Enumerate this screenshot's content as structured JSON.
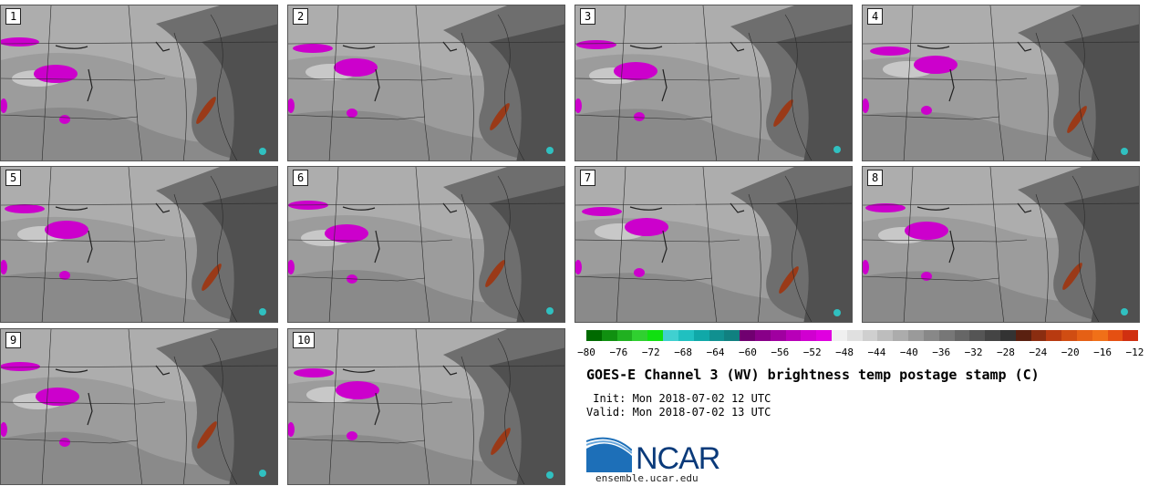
{
  "panels": [
    "1",
    "2",
    "3",
    "4",
    "5",
    "6",
    "7",
    "8",
    "9",
    "10"
  ],
  "colorbar": {
    "colors": [
      "#006a00",
      "#109010",
      "#20b020",
      "#30d030",
      "#10e010",
      "#40d0d0",
      "#20c0c0",
      "#10a8a8",
      "#109090",
      "#108080",
      "#700070",
      "#880088",
      "#a000a0",
      "#b800b8",
      "#d000d0",
      "#e000e0",
      "#f0f0f0",
      "#e0e0e0",
      "#cfcfcf",
      "#bdbdbd",
      "#acacac",
      "#9a9a9a",
      "#888888",
      "#777777",
      "#666666",
      "#555555",
      "#444444",
      "#333333",
      "#5a2010",
      "#8a2d10",
      "#b83a10",
      "#d04d12",
      "#e56015",
      "#f07018",
      "#e55012",
      "#d03010"
    ],
    "tick_labels": [
      "−80",
      "−76",
      "−72",
      "−68",
      "−64",
      "−60",
      "−56",
      "−52",
      "−48",
      "−44",
      "−40",
      "−36",
      "−32",
      "−28",
      "−24",
      "−20",
      "−16",
      "−12"
    ]
  },
  "title": "GOES-E Channel 3 (WV) brightness temp postage stamp (C)",
  "init_line": " Init: Mon 2018-07-02 12 UTC",
  "valid_line": "Valid: Mon 2018-07-02 13 UTC",
  "logo_text": "NCAR",
  "url": "ensemble.ucar.edu"
}
